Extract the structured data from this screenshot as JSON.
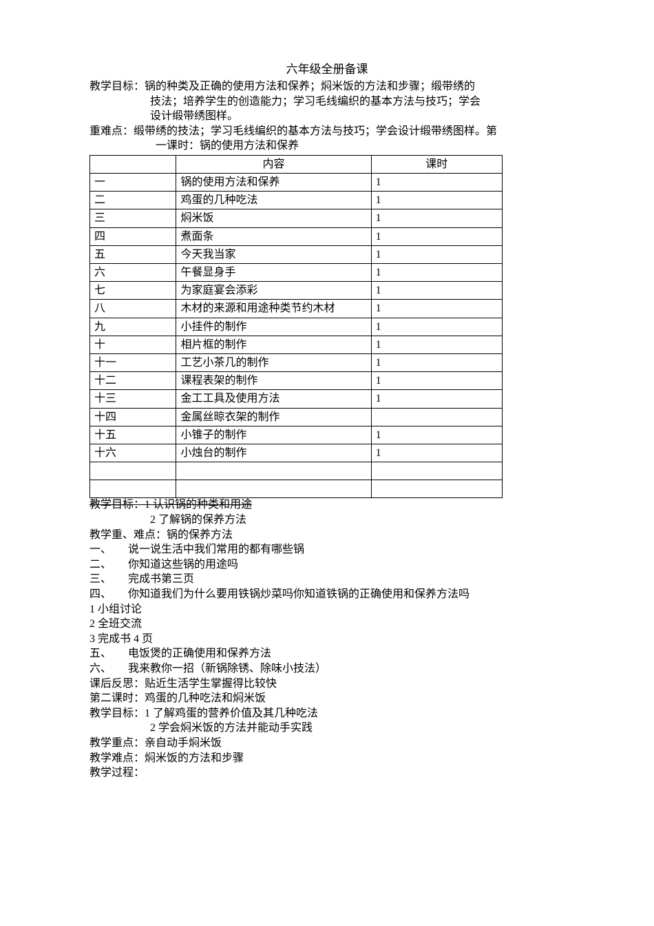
{
  "title": "六年级全册备课",
  "intro": {
    "goal_label": "教学目标：",
    "goal_text1": "锅的种类及正确的使用方法和保养；焖米饭的方法和步骤；缎带绣的",
    "goal_text2": "技法；培养学生的创造能力；学习毛线编织的基本方法与技巧；学会",
    "goal_text3": "设计缎带绣图样。",
    "hard_label": "重难点：",
    "hard_text1": "缎带绣的技法；学习毛线编织的基本方法与技巧；学会设计缎带绣图样。第",
    "hard_text2": "一课时：锅的使用方法和保养"
  },
  "table": {
    "headers": [
      "",
      "内容",
      "课时"
    ],
    "rows": [
      [
        "一",
        "锅的使用方法和保养",
        "1"
      ],
      [
        "二",
        "鸡蛋的几种吃法",
        "1"
      ],
      [
        "三",
        "焖米饭",
        "1"
      ],
      [
        "四",
        "煮面条",
        "1"
      ],
      [
        "五",
        "今天我当家",
        "1"
      ],
      [
        "六",
        "午餐显身手",
        "1"
      ],
      [
        "七",
        "为家庭宴会添彩",
        "1"
      ],
      [
        "八",
        "木材的来源和用途种类节约木材",
        "1"
      ],
      [
        "九",
        "小挂件的制作",
        "1"
      ],
      [
        "十",
        "相片框的制作",
        "1"
      ],
      [
        "十一",
        "工艺小茶几的制作",
        "1"
      ],
      [
        "十二",
        "课程表架的制作",
        "1"
      ],
      [
        "十三",
        "金工工具及使用方法",
        "1"
      ],
      [
        "十四",
        "金属丝晾衣架的制作",
        ""
      ],
      [
        "十五",
        "小锥子的制作",
        "1"
      ],
      [
        "十六",
        "小烛台的制作",
        "1"
      ],
      [
        "",
        "",
        ""
      ],
      [
        "",
        "",
        ""
      ]
    ]
  },
  "body": {
    "l1": "教学目标：1  认识锅的种类和用途",
    "l2": "2  了解锅的保养方法",
    "l3": "教学重、难点：锅的保养方法",
    "l4": "一、　　说一说生活中我们常用的都有哪些锅",
    "l5": "二、　　你知道这些锅的用途吗",
    "l6": "三、　　完成书第三页",
    "l7": "四、　　你知道我们为什么要用铁锅炒菜吗你知道铁锅的正确使用和保养方法吗",
    "l8": "1  小组讨论",
    "l9": "2  全班交流",
    "l10": "3  完成书 4 页",
    "l11": "五、　　电饭煲的正确使用和保养方法",
    "l12": "六、　　我来教你一招（新锅除锈、除味小技法）",
    "l13": "课后反思：贴近生活学生掌握得比较快",
    "l14": "第二课时：鸡蛋的几种吃法和焖米饭",
    "l15": "教学目标：1  了解鸡蛋的营养价值及其几种吃法",
    "l16": "2  学会焖米饭的方法并能动手实践",
    "l17": "教学重点：亲自动手焖米饭",
    "l18": "教学难点：焖米饭的方法和步骤",
    "l19": "教学过程："
  }
}
